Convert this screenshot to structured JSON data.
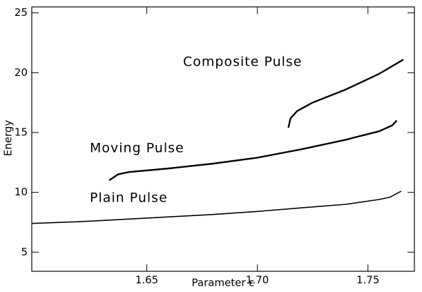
{
  "chart_data": {
    "type": "line",
    "xlabel": "Parameter ε",
    "ylabel": "Energy",
    "xlim": [
      1.598,
      1.771
    ],
    "ylim": [
      3.4,
      25.5
    ],
    "xticks": [
      {
        "value": 1.65,
        "label": "1.65"
      },
      {
        "value": 1.7,
        "label": "1.70"
      },
      {
        "value": 1.75,
        "label": "1.75"
      }
    ],
    "yticks": [
      5,
      10,
      15,
      20,
      25
    ],
    "grid": false,
    "series": [
      {
        "name": "Plain Pulse",
        "color": "#000000",
        "x": [
          1.598,
          1.62,
          1.65,
          1.68,
          1.7,
          1.72,
          1.74,
          1.755,
          1.76,
          1.765
        ],
        "values": [
          7.4,
          7.55,
          7.85,
          8.15,
          8.4,
          8.7,
          9.0,
          9.4,
          9.6,
          10.1
        ]
      },
      {
        "name": "Moving Pulse",
        "color": "#000000",
        "x": [
          1.633,
          1.637,
          1.642,
          1.66,
          1.68,
          1.7,
          1.72,
          1.74,
          1.755,
          1.761,
          1.763
        ],
        "values": [
          11.0,
          11.5,
          11.7,
          12.0,
          12.4,
          12.9,
          13.6,
          14.4,
          15.1,
          15.6,
          16.0
        ]
      },
      {
        "name": "Composite Pulse",
        "color": "#000000",
        "x": [
          1.714,
          1.715,
          1.718,
          1.725,
          1.74,
          1.755,
          1.766
        ],
        "values": [
          15.4,
          16.2,
          16.8,
          17.5,
          18.6,
          19.9,
          21.1
        ]
      }
    ]
  }
}
